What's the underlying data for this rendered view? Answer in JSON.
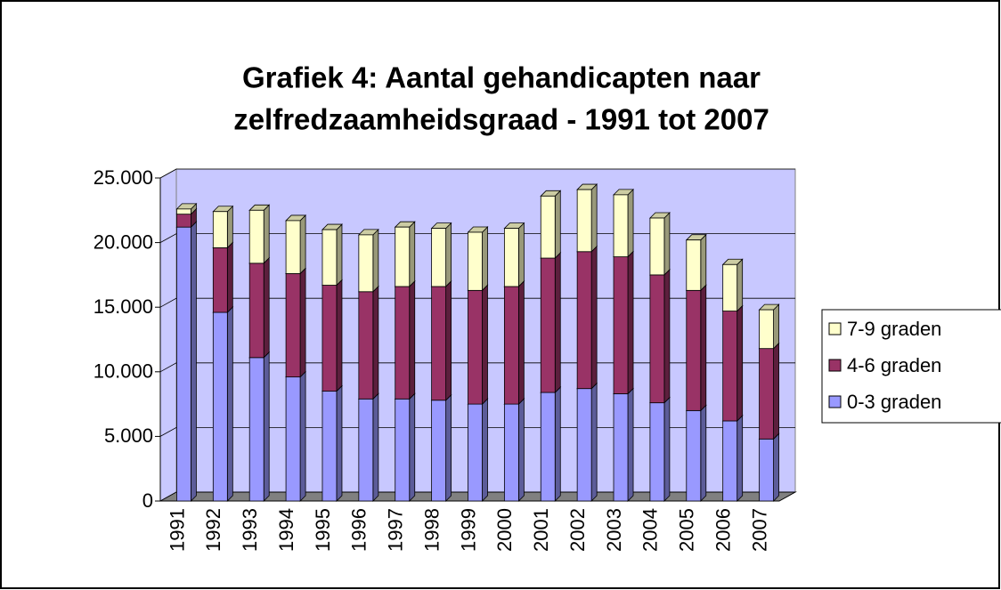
{
  "chart_data": {
    "type": "bar3d_stacked",
    "title": "Grafiek 4: Aantal gehandicapten naar",
    "subtitle": "zelfredzaamheidsgraad - 1991 tot 2007",
    "categories": [
      "1991",
      "1992",
      "1993",
      "1994",
      "1995",
      "1996",
      "1997",
      "1998",
      "1999",
      "2000",
      "2001",
      "2002",
      "2003",
      "2004",
      "2005",
      "2006",
      "2007"
    ],
    "series": [
      {
        "name": "0-3 graden",
        "color": "#9999ff",
        "values": [
          21200,
          14600,
          11100,
          9600,
          8500,
          7900,
          7900,
          7800,
          7500,
          7500,
          8400,
          8700,
          8300,
          7600,
          7000,
          6200,
          4800
        ]
      },
      {
        "name": "4-6 graden",
        "color": "#993366",
        "values": [
          1000,
          5000,
          7300,
          8000,
          8200,
          8300,
          8700,
          8800,
          8800,
          9100,
          10400,
          10600,
          10600,
          9900,
          9300,
          8500,
          7000
        ]
      },
      {
        "name": "7-9 graden",
        "color": "#ffffcc",
        "values": [
          400,
          2800,
          4100,
          4100,
          4300,
          4400,
          4600,
          4500,
          4500,
          4500,
          4800,
          4800,
          4800,
          4400,
          3900,
          3600,
          3000
        ]
      }
    ],
    "ylim": [
      0,
      25000
    ],
    "yticks": [
      0,
      {
        "value": 5000,
        "label": "5.000"
      },
      {
        "value": 10000,
        "label": "10.000"
      },
      {
        "value": 15000,
        "label": "15.000"
      },
      {
        "value": 20000,
        "label": "20.000"
      },
      {
        "value": 25000,
        "label": "25.000"
      }
    ],
    "grid": true,
    "legend": "right",
    "wall_color": "#c8c8ff",
    "floor_color": "#808080"
  }
}
